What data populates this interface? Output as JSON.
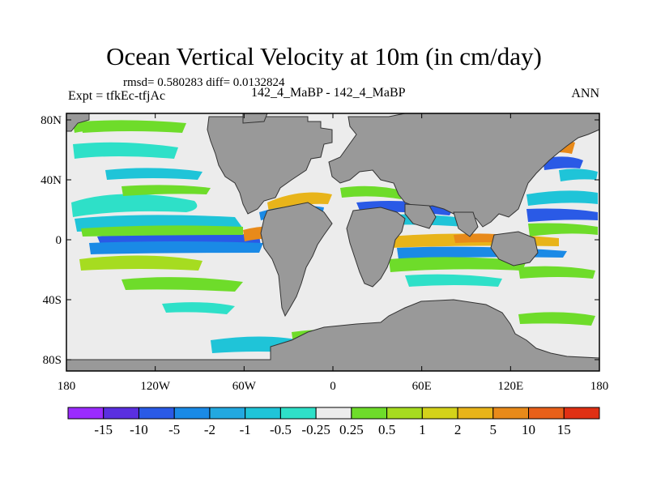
{
  "title": "Ocean Vertical Velocity at 10m (in cm/day)",
  "stats_line": "rmsd= 0.580283 diff= 0.0132824",
  "left_label": "Expt = tfkEc-tfjAc",
  "center_label": "142_4_MaBP - 142_4_MaBP",
  "right_label": "ANN",
  "lon_ticks": [
    "180",
    "120W",
    "60W",
    "0",
    "60E",
    "120E",
    "180"
  ],
  "lat_ticks": [
    "80N",
    "40N",
    "0",
    "40S",
    "80S"
  ],
  "colorbar": {
    "labels": [
      "-15",
      "-10",
      "-5",
      "-2",
      "-1",
      "-0.5",
      "-0.25",
      "0.25",
      "0.5",
      "1",
      "2",
      "5",
      "10",
      "15"
    ],
    "colors": [
      "#9b2bff",
      "#5a2fe0",
      "#2a5ae6",
      "#1a8ae6",
      "#22a8e0",
      "#1fc4d8",
      "#2ee0c8",
      "#ececec",
      "#6edc2a",
      "#a6dc20",
      "#d4d21a",
      "#e8b41a",
      "#e88a1a",
      "#e8601a",
      "#e03014"
    ]
  },
  "legend": {
    "land": "#999999",
    "no_change": "#ececec"
  }
}
